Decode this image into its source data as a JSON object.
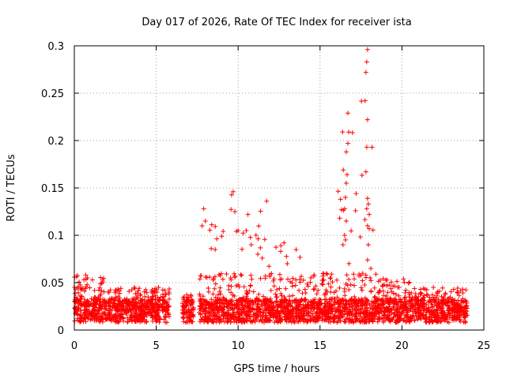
{
  "chart_data": {
    "type": "scatter",
    "title": "Day 017 of 2026, Rate Of TEC Index for receiver ista",
    "xlabel": "GPS time / hours",
    "ylabel": "ROTI / TECUs",
    "xlim": [
      0,
      25
    ],
    "ylim": [
      0,
      0.3
    ],
    "x_ticks": [
      0,
      5,
      10,
      15,
      20,
      25
    ],
    "x_tick_labels": [
      "0",
      "5",
      "10",
      "15",
      "20",
      "25"
    ],
    "y_ticks": [
      0,
      0.05,
      0.1,
      0.15,
      0.2,
      0.25,
      0.3
    ],
    "y_tick_labels": [
      "0",
      "0.05",
      "0.1",
      "0.15",
      "0.2",
      "0.25",
      "0.3"
    ],
    "grid": true,
    "marker": "+",
    "series": [
      {
        "name": "ROTI",
        "color": "#ff0000",
        "background_noise": {
          "x_range": [
            0,
            24
          ],
          "gaps": [
            [
              5.9,
              6.6
            ],
            [
              7.3,
              7.6
            ]
          ],
          "density": 130,
          "mean_level": 0.02,
          "spread": 0.012
        },
        "segments": [
          {
            "x0": 0.0,
            "x1": 1.9,
            "ymax": 0.058
          },
          {
            "x0": 1.9,
            "x1": 3.6,
            "ymax": 0.045
          },
          {
            "x0": 3.6,
            "x1": 5.8,
            "ymax": 0.045
          },
          {
            "x0": 6.6,
            "x1": 7.3,
            "ymax": 0.038
          },
          {
            "x0": 7.6,
            "x1": 9.5,
            "ymax": 0.12
          },
          {
            "x0": 9.5,
            "x1": 11.8,
            "ymax": 0.145
          },
          {
            "x0": 11.8,
            "x1": 14.2,
            "ymax": 0.09
          },
          {
            "x0": 14.2,
            "x1": 15.6,
            "ymax": 0.06
          },
          {
            "x0": 15.6,
            "x1": 17.2,
            "ymax": 0.23
          },
          {
            "x0": 17.2,
            "x1": 18.5,
            "ymax": 0.3
          },
          {
            "x0": 18.5,
            "x1": 20.5,
            "ymax": 0.055
          },
          {
            "x0": 20.5,
            "x1": 24.0,
            "ymax": 0.045
          }
        ],
        "spikes": [
          {
            "x": 0.7,
            "y": 0.058
          },
          {
            "x": 0.8,
            "y": 0.055
          },
          {
            "x": 7.9,
            "y": 0.128
          },
          {
            "x": 8.0,
            "y": 0.115
          },
          {
            "x": 7.8,
            "y": 0.11
          },
          {
            "x": 9.0,
            "y": 0.099
          },
          {
            "x": 8.6,
            "y": 0.085
          },
          {
            "x": 9.7,
            "y": 0.146
          },
          {
            "x": 9.8,
            "y": 0.125
          },
          {
            "x": 10.0,
            "y": 0.105
          },
          {
            "x": 10.6,
            "y": 0.122
          },
          {
            "x": 10.5,
            "y": 0.105
          },
          {
            "x": 10.8,
            "y": 0.09
          },
          {
            "x": 11.2,
            "y": 0.08
          },
          {
            "x": 12.8,
            "y": 0.092
          },
          {
            "x": 12.6,
            "y": 0.083
          },
          {
            "x": 13.0,
            "y": 0.07
          },
          {
            "x": 15.2,
            "y": 0.06
          },
          {
            "x": 16.3,
            "y": 0.127
          },
          {
            "x": 16.2,
            "y": 0.118
          },
          {
            "x": 16.7,
            "y": 0.229
          },
          {
            "x": 16.75,
            "y": 0.209
          },
          {
            "x": 16.7,
            "y": 0.197
          },
          {
            "x": 16.6,
            "y": 0.188
          },
          {
            "x": 16.65,
            "y": 0.164
          },
          {
            "x": 16.6,
            "y": 0.155
          },
          {
            "x": 16.55,
            "y": 0.14
          },
          {
            "x": 16.5,
            "y": 0.128
          },
          {
            "x": 16.6,
            "y": 0.115
          },
          {
            "x": 16.5,
            "y": 0.1
          },
          {
            "x": 16.4,
            "y": 0.09
          },
          {
            "x": 17.9,
            "y": 0.296
          },
          {
            "x": 17.85,
            "y": 0.283
          },
          {
            "x": 17.8,
            "y": 0.272
          },
          {
            "x": 17.75,
            "y": 0.242
          },
          {
            "x": 17.9,
            "y": 0.222
          },
          {
            "x": 17.85,
            "y": 0.193
          },
          {
            "x": 17.8,
            "y": 0.167
          },
          {
            "x": 17.9,
            "y": 0.139
          },
          {
            "x": 17.95,
            "y": 0.133
          },
          {
            "x": 17.85,
            "y": 0.128
          },
          {
            "x": 18.0,
            "y": 0.122
          },
          {
            "x": 17.9,
            "y": 0.11
          },
          {
            "x": 18.0,
            "y": 0.107
          },
          {
            "x": 17.95,
            "y": 0.09
          },
          {
            "x": 17.9,
            "y": 0.074
          },
          {
            "x": 18.1,
            "y": 0.065
          },
          {
            "x": 17.8,
            "y": 0.058
          }
        ]
      }
    ]
  }
}
